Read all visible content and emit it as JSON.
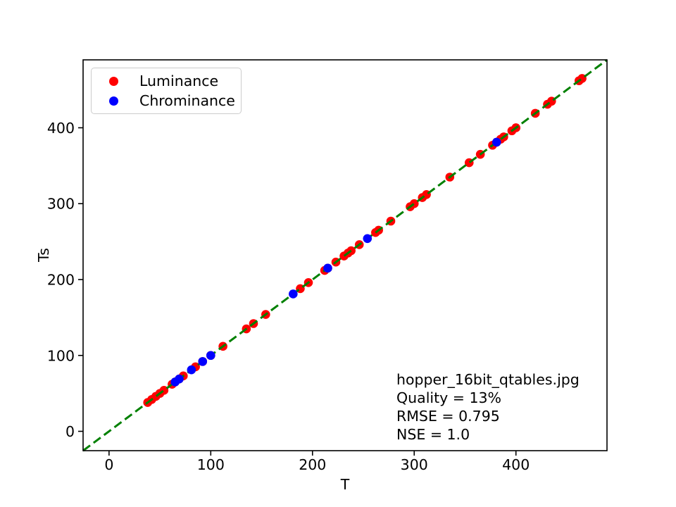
{
  "figure": {
    "background_color": "#ffffff"
  },
  "chart_data": {
    "type": "scatter",
    "title": "",
    "xlabel": "T",
    "ylabel": "Ts",
    "xlim": [
      -25.5,
      489.5
    ],
    "ylim": [
      -25.5,
      489.5
    ],
    "xticks": [
      0,
      100,
      200,
      300,
      400
    ],
    "yticks": [
      0,
      100,
      200,
      300,
      400
    ],
    "grid": false,
    "legend": {
      "position": "upper-left"
    },
    "series": [
      {
        "name": "Luminance",
        "color": "#ff0000",
        "marker": "circle",
        "x": [
          38,
          42,
          46,
          50,
          54,
          62,
          65,
          69,
          73,
          85,
          92,
          100,
          112,
          135,
          142,
          154,
          188,
          196,
          212,
          215,
          223,
          231,
          235,
          238,
          246,
          262,
          265,
          277,
          296,
          300,
          308,
          312,
          335,
          354,
          365,
          377,
          381,
          385,
          388,
          396,
          400,
          419,
          431,
          435,
          462,
          465
        ],
        "y": [
          38,
          42,
          46,
          50,
          54,
          62,
          65,
          69,
          73,
          85,
          92,
          100,
          112,
          135,
          142,
          154,
          188,
          196,
          212,
          215,
          223,
          231,
          235,
          238,
          246,
          262,
          265,
          277,
          296,
          300,
          308,
          312,
          335,
          354,
          365,
          377,
          381,
          385,
          388,
          396,
          400,
          419,
          431,
          435,
          462,
          465
        ]
      },
      {
        "name": "Chrominance",
        "color": "#0000ff",
        "marker": "circle",
        "x": [
          65,
          69,
          81,
          92,
          100,
          181,
          215,
          254,
          381
        ],
        "y": [
          65,
          69,
          81,
          92,
          100,
          181,
          215,
          254,
          381
        ]
      }
    ],
    "reference_line": {
      "equation": "y = x",
      "color": "#008000",
      "style": "dashed"
    },
    "annotation": {
      "lines": [
        "hopper_16bit_qtables.jpg",
        "Quality = 13%",
        "RMSE = 0.795",
        "NSE = 1.0"
      ]
    }
  }
}
